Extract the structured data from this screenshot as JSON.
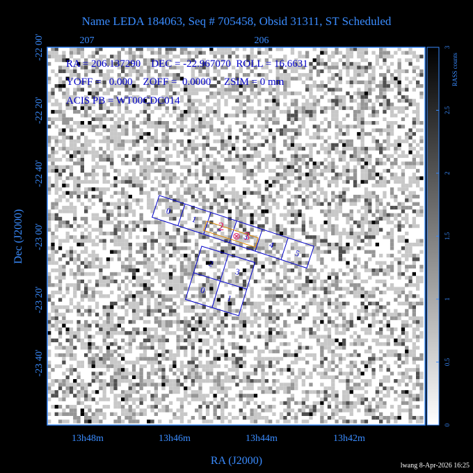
{
  "title": "Name LEDA 184063, Seq # 705458, Obsid 31311, ST Scheduled",
  "info": [
    "RA = 206.137290    DEC = -22.967070  ROLL = 16.6631",
    "YOFF =   0.000    ZOFF =  0.0000     ZSIM = 0 mm",
    "ACIS PB = WT00CDC014"
  ],
  "x_label": "RA (J2000)",
  "y_label": "Dec (J2000)",
  "top_ticks": [
    "207",
    "206"
  ],
  "x_ticks": [
    "13h48m",
    "13h46m",
    "13h44m",
    "13h42m"
  ],
  "y_ticks": [
    "-22 00'",
    "-22 20'",
    "-22 40'",
    "-23 00'",
    "-23 20'",
    "-23 40'"
  ],
  "colorbar": {
    "label": "RASS counts",
    "lim": [
      0,
      3
    ],
    "ticks": [
      0,
      0.5,
      1,
      1.5,
      2,
      2.5,
      3
    ]
  },
  "acis_s_chips": [
    "0",
    "1",
    "2",
    "3",
    "4",
    "5"
  ],
  "acis_i_chips": [
    "2",
    "3",
    "0",
    "1"
  ],
  "hrc_labels": [
    "2",
    "3"
  ],
  "footer": "lwang  8-Apr-2026 16:25"
}
